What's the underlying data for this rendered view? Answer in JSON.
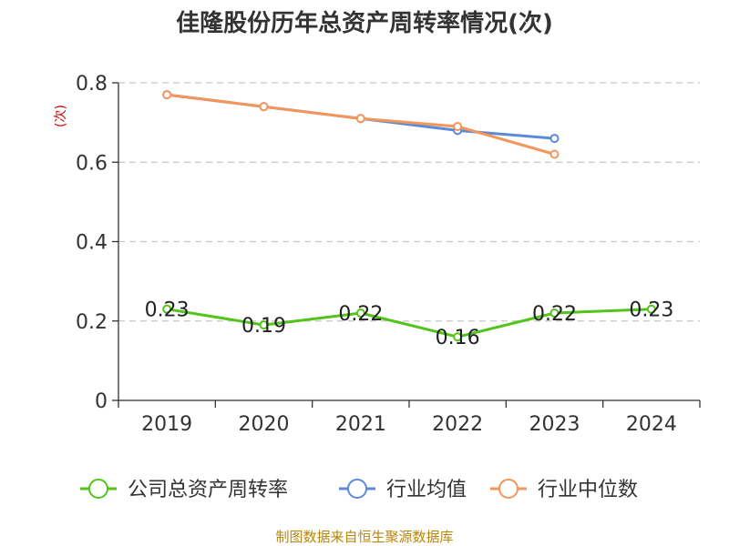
{
  "chart_data": {
    "type": "line",
    "title": "佳隆股份历年总资产周转率情况(次)",
    "ylabel": "(次)",
    "xlabel": "",
    "categories": [
      "2019",
      "2020",
      "2021",
      "2022",
      "2023",
      "2024"
    ],
    "ylim": [
      0,
      0.8
    ],
    "yticks": [
      0,
      0.2,
      0.4,
      0.6,
      0.8
    ],
    "ytick_labels": [
      "0",
      "0.2",
      "0.4",
      "0.6",
      "0.8"
    ],
    "grid": true,
    "legend_position": "bottom",
    "series": [
      {
        "name": "公司总资产周转率",
        "color": "#52c41a",
        "values": [
          0.23,
          0.19,
          0.22,
          0.16,
          0.22,
          0.23
        ],
        "labels": [
          "0.23",
          "0.19",
          "0.22",
          "0.16",
          "0.22",
          "0.23"
        ]
      },
      {
        "name": "行业均值",
        "color": "#5b8ad9",
        "values": [
          0.77,
          0.74,
          0.71,
          0.68,
          0.66,
          null
        ]
      },
      {
        "name": "行业中位数",
        "color": "#f4955a",
        "values": [
          0.77,
          0.74,
          0.71,
          0.69,
          0.62,
          null
        ]
      }
    ],
    "source": "制图数据来自恒生聚源数据库"
  }
}
